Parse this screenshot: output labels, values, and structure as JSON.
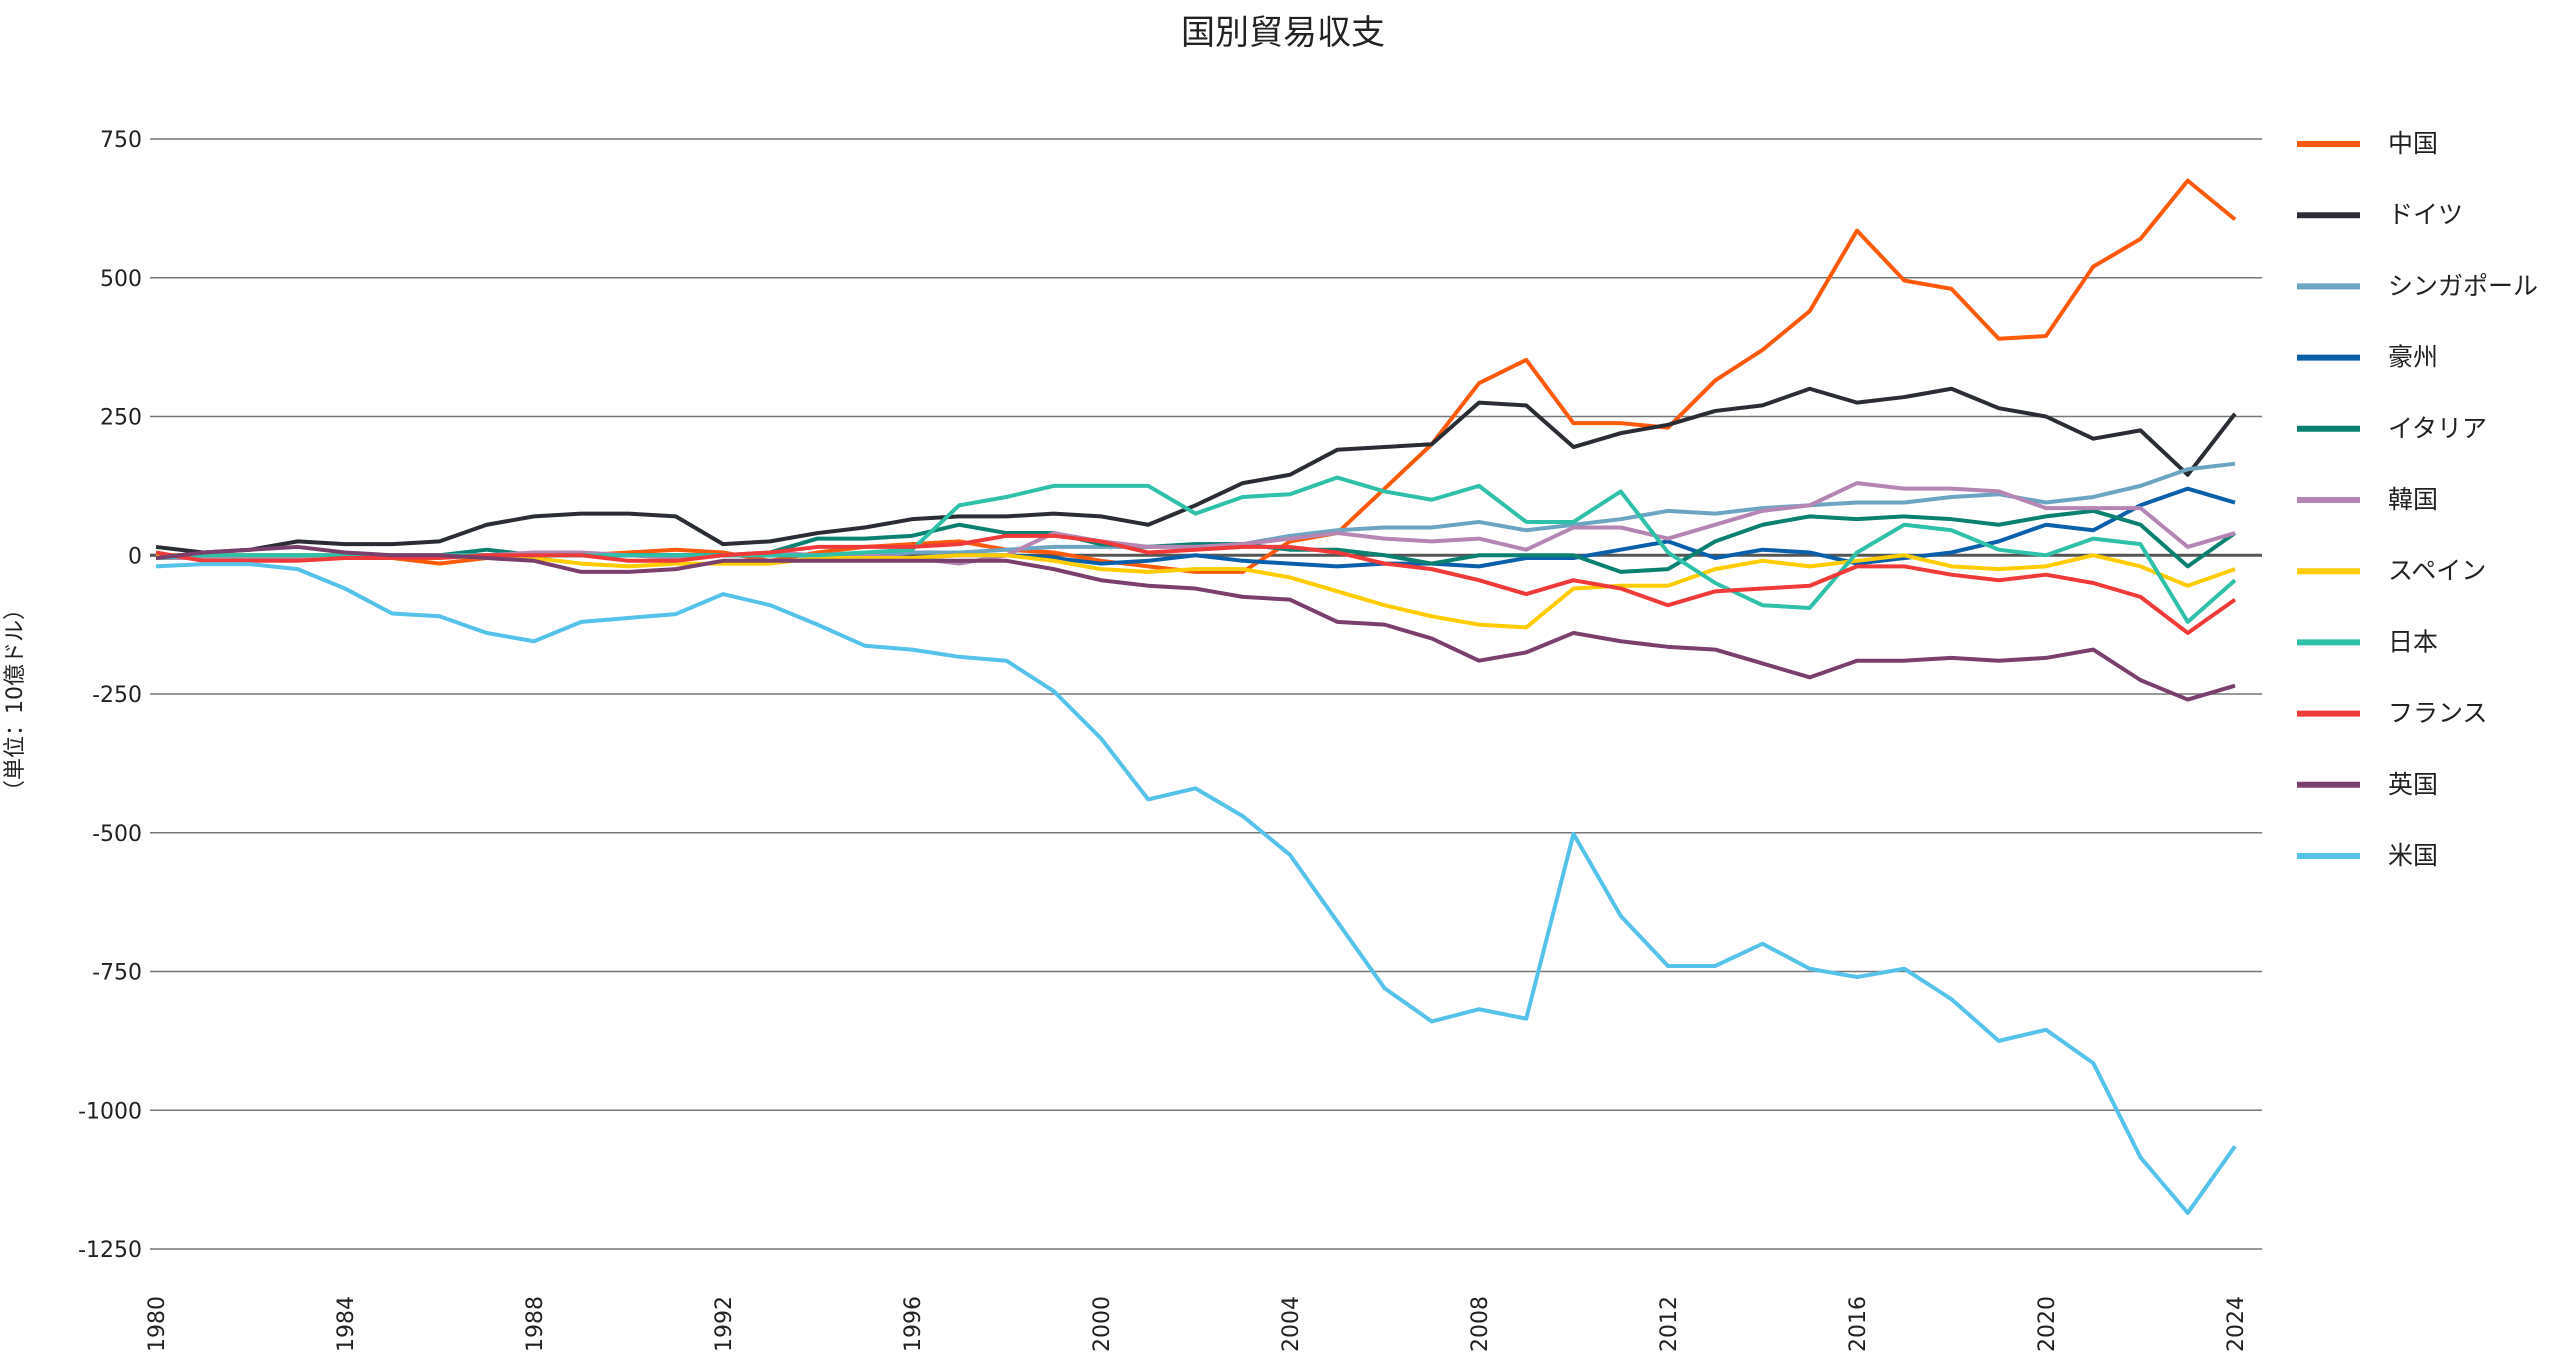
{
  "chart_data": {
    "type": "line",
    "title": "国別貿易収支",
    "ylabel": "（単位：10億ドル）",
    "xlabel": "",
    "ylim": [
      -1250,
      750
    ],
    "yticks": [
      750,
      500,
      250,
      0,
      -250,
      -500,
      -750,
      -1000,
      -1250
    ],
    "ytick_labels": [
      "750",
      "500",
      "250",
      "0",
      "-250",
      "-500",
      "-750",
      "-1000",
      "-1250"
    ],
    "xlim": [
      1980,
      2024
    ],
    "xticks": [
      1980,
      1984,
      1988,
      1992,
      1996,
      2000,
      2004,
      2008,
      2012,
      2016,
      2020,
      2024
    ],
    "xtick_labels": [
      "1980",
      "1984",
      "1988",
      "1992",
      "1996",
      "2000",
      "2004",
      "2008",
      "2012",
      "2016",
      "2020",
      "2024"
    ],
    "grid": "horizontal",
    "legend_position": "right",
    "x": [
      1980,
      1981,
      1982,
      1983,
      1984,
      1985,
      1986,
      1987,
      1988,
      1989,
      1990,
      1991,
      1992,
      1993,
      1994,
      1995,
      1996,
      1997,
      1998,
      1999,
      2000,
      2001,
      2002,
      2003,
      2004,
      2005,
      2006,
      2007,
      2008,
      2009,
      2010,
      2011,
      2012,
      2013,
      2014,
      2015,
      2016,
      2017,
      2018,
      2019,
      2020,
      2021,
      2022,
      2023,
      2024
    ],
    "series": [
      {
        "name": "中国",
        "color": "#FF5A0A",
        "values": [
          0,
          -5,
          -5,
          -5,
          0,
          -5,
          -15,
          -5,
          0,
          0,
          5,
          10,
          5,
          -10,
          5,
          15,
          20,
          25,
          10,
          5,
          -10,
          -20,
          -30,
          -30,
          25,
          40,
          120,
          200,
          310,
          352,
          238,
          238,
          230,
          315,
          370,
          440,
          585,
          495,
          480,
          390,
          395,
          520,
          570,
          675,
          605
        ]
      },
      {
        "name": "ドイツ",
        "color": "#2A2D33",
        "values": [
          15,
          5,
          10,
          25,
          20,
          20,
          25,
          55,
          70,
          75,
          75,
          70,
          20,
          25,
          40,
          50,
          65,
          70,
          70,
          75,
          70,
          55,
          90,
          130,
          145,
          190,
          195,
          200,
          275,
          270,
          195,
          220,
          235,
          260,
          270,
          300,
          275,
          285,
          300,
          265,
          250,
          210,
          225,
          145,
          255
        ]
      },
      {
        "name": "シンガポール",
        "color": "#6BA5C1",
        "values": [
          0,
          0,
          0,
          0,
          0,
          0,
          0,
          0,
          0,
          0,
          0,
          0,
          0,
          0,
          0,
          0,
          5,
          5,
          10,
          15,
          15,
          15,
          20,
          20,
          35,
          45,
          50,
          50,
          60,
          45,
          55,
          65,
          80,
          75,
          85,
          90,
          95,
          95,
          105,
          110,
          95,
          105,
          125,
          155,
          165
        ]
      },
      {
        "name": "豪州",
        "color": "#0A5FAA",
        "values": [
          0,
          0,
          0,
          0,
          0,
          0,
          0,
          0,
          0,
          0,
          0,
          0,
          0,
          0,
          0,
          0,
          -5,
          0,
          0,
          -5,
          -15,
          -10,
          0,
          -10,
          -15,
          -20,
          -15,
          -15,
          -20,
          -5,
          -5,
          10,
          25,
          -5,
          10,
          5,
          -15,
          -5,
          5,
          25,
          55,
          45,
          90,
          120,
          95
        ]
      },
      {
        "name": "イタリア",
        "color": "#0A8070",
        "values": [
          -5,
          -5,
          -5,
          -5,
          -5,
          -5,
          0,
          10,
          0,
          0,
          0,
          0,
          0,
          5,
          30,
          30,
          35,
          55,
          40,
          40,
          20,
          15,
          20,
          20,
          10,
          10,
          0,
          -15,
          0,
          0,
          0,
          -30,
          -25,
          25,
          55,
          70,
          65,
          70,
          65,
          55,
          70,
          80,
          55,
          -20,
          40
        ]
      },
      {
        "name": "韓国",
        "color": "#B586B3",
        "values": [
          -5,
          -5,
          -5,
          -5,
          -5,
          -5,
          0,
          0,
          5,
          5,
          0,
          -5,
          0,
          5,
          0,
          0,
          -5,
          -15,
          0,
          40,
          25,
          15,
          15,
          20,
          30,
          40,
          30,
          25,
          30,
          10,
          50,
          50,
          30,
          55,
          80,
          90,
          130,
          120,
          120,
          115,
          85,
          85,
          85,
          15,
          40
        ]
      },
      {
        "name": "スペイン",
        "color": "#FFCC00",
        "values": [
          0,
          0,
          0,
          0,
          0,
          0,
          0,
          -5,
          -5,
          -15,
          -20,
          -15,
          -15,
          -15,
          -5,
          -5,
          -5,
          0,
          0,
          -10,
          -25,
          -30,
          -25,
          -25,
          -40,
          -65,
          -90,
          -110,
          -125,
          -130,
          -60,
          -55,
          -55,
          -25,
          -10,
          -20,
          -10,
          0,
          -20,
          -25,
          -20,
          0,
          -20,
          -55,
          -25
        ]
      },
      {
        "name": "日本",
        "color": "#2EC0A8",
        "values": [
          -5,
          0,
          0,
          0,
          0,
          0,
          0,
          0,
          0,
          0,
          0,
          0,
          0,
          0,
          0,
          5,
          10,
          90,
          105,
          125,
          125,
          125,
          75,
          105,
          110,
          140,
          115,
          100,
          125,
          60,
          60,
          115,
          5,
          -50,
          -90,
          -95,
          5,
          55,
          45,
          10,
          0,
          30,
          20,
          -120,
          -45
        ]
      },
      {
        "name": "フランス",
        "color": "#F03A3A",
        "values": [
          5,
          -10,
          -10,
          -10,
          -5,
          -5,
          -5,
          0,
          0,
          0,
          -10,
          -10,
          0,
          5,
          15,
          15,
          15,
          20,
          35,
          35,
          25,
          5,
          10,
          15,
          15,
          5,
          -15,
          -25,
          -45,
          -70,
          -45,
          -60,
          -90,
          -65,
          -60,
          -55,
          -20,
          -20,
          -35,
          -45,
          -35,
          -50,
          -75,
          -140,
          -80
        ]
      },
      {
        "name": "英国",
        "color": "#7B3F6E",
        "values": [
          -5,
          5,
          10,
          15,
          5,
          0,
          0,
          -5,
          -10,
          -30,
          -30,
          -25,
          -10,
          -10,
          -10,
          -10,
          -10,
          -10,
          -10,
          -25,
          -45,
          -55,
          -60,
          -75,
          -80,
          -120,
          -125,
          -150,
          -190,
          -175,
          -140,
          -155,
          -165,
          -170,
          -195,
          -220,
          -190,
          -190,
          -185,
          -190,
          -185,
          -170,
          -225,
          -260,
          -235
        ]
      },
      {
        "name": "米国",
        "color": "#55C2EA",
        "values": [
          -20,
          -16,
          -16,
          -25,
          -60,
          -105,
          -110,
          -140,
          -155,
          -120,
          -113,
          -106,
          -70,
          -90,
          -125,
          -163,
          -170,
          -183,
          -190,
          -245,
          -330,
          -440,
          -420,
          -470,
          -540,
          -660,
          -780,
          -840,
          -818,
          -835,
          -502,
          -650,
          -740,
          -740,
          -700,
          -745,
          -760,
          -745,
          -800,
          -875,
          -855,
          -915,
          -1085,
          -1185,
          -1065
        ]
      }
    ]
  }
}
